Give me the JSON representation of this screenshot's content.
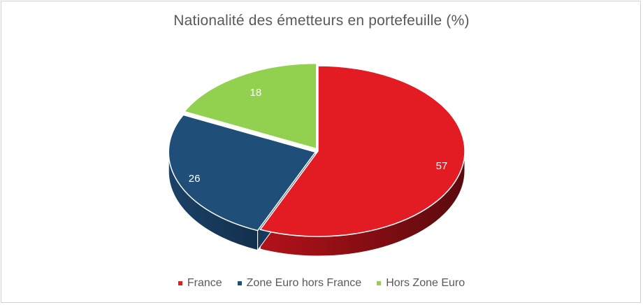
{
  "chart_data": {
    "type": "pie",
    "title": "Nationalité des émetteurs en portefeuille (%)",
    "categories": [
      "France",
      "Zone Euro hors France",
      "Hors Zone Euro"
    ],
    "values": [
      57,
      26,
      18
    ],
    "colors": [
      "#e31b23",
      "#1f4e79",
      "#92d050"
    ],
    "side_colors": [
      "#8b0f14",
      "#163a5c",
      "#5f8f2c"
    ],
    "legend_position": "bottom",
    "style": "3d"
  }
}
